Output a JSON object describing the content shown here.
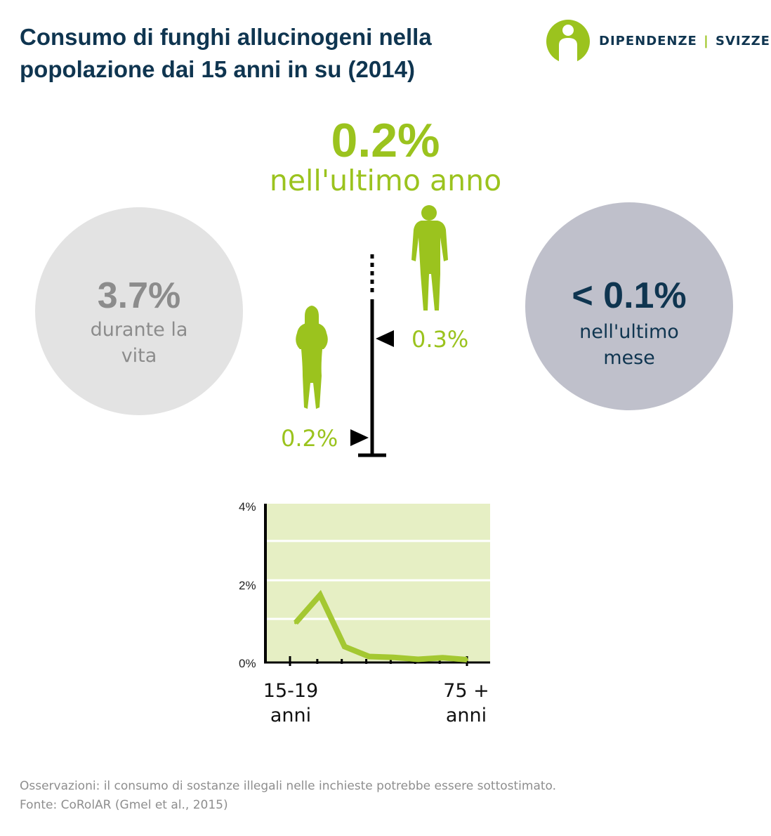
{
  "title": {
    "line1": "Consumo di funghi allucinogeni nella",
    "line2": "popolazione dai 15 anni in su (2014)"
  },
  "logo": {
    "part1": "DIPENDENZE",
    "separator": "|",
    "part2": "SVIZZERA",
    "icon": "info-person-icon",
    "color": "#9bc31e"
  },
  "headline": {
    "value": "0.2%",
    "label": "nell'ultimo anno"
  },
  "lifetime": {
    "value": "3.7%",
    "label": "durante la vita"
  },
  "last_month": {
    "value": "< 0.1%",
    "label": "nell'ultimo mese"
  },
  "gender": {
    "men": {
      "value": "0.3%",
      "icon": "man-silhouette-icon",
      "fraction": 0.003
    },
    "women": {
      "value": "0.2%",
      "icon": "woman-silhouette-icon",
      "fraction": 0.002
    }
  },
  "colors": {
    "accent": "#9bc31e",
    "navy": "#0f3550",
    "light_grey": "#e3e3e3",
    "blue_grey": "#bfc0cb",
    "chart_bg": "#e6efc4"
  },
  "chart_data": {
    "type": "line",
    "x_label_first": "15-19 anni",
    "x_label_last": "75 + anni",
    "y_ticks": [
      "4%",
      "2%",
      "0%"
    ],
    "ylim": [
      0,
      4
    ],
    "grid": true,
    "series": [
      {
        "values": [
          1.0,
          1.7,
          0.4,
          0.15,
          0.13,
          0.08,
          0.12,
          0.07
        ]
      }
    ]
  },
  "footer": {
    "note": "Osservazioni: il consumo di sostanze illegali nelle inchieste potrebbe essere sottostimato.",
    "source": "Fonte: CoRolAR (Gmel et al., 2015)"
  }
}
